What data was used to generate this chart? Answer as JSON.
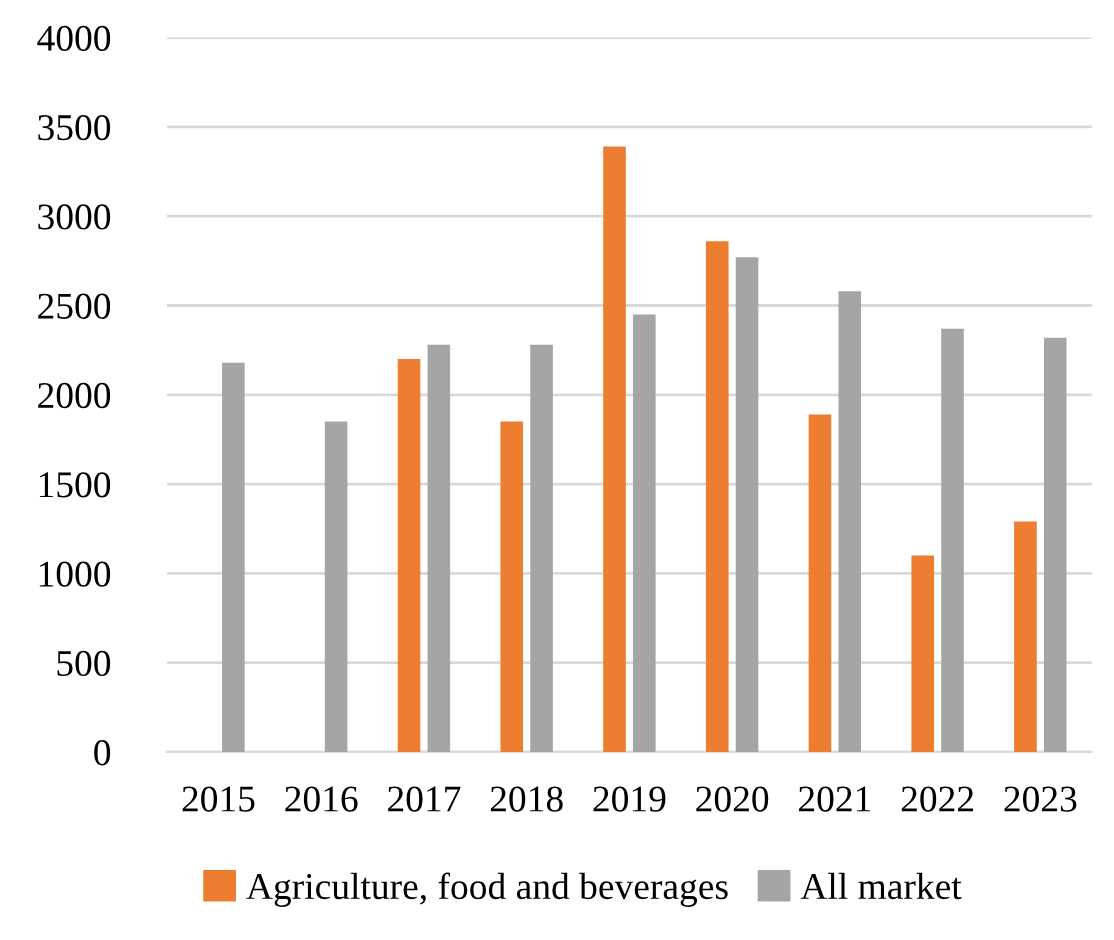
{
  "chart_data": {
    "type": "bar",
    "categories": [
      "2015",
      "2016",
      "2017",
      "2018",
      "2019",
      "2020",
      "2021",
      "2022",
      "2023"
    ],
    "series": [
      {
        "name": "Agriculture, food and beverages",
        "color": "#ed7d31",
        "values": [
          null,
          null,
          2200,
          1850,
          3390,
          2860,
          1890,
          1100,
          1290
        ]
      },
      {
        "name": "All market",
        "color": "#a5a5a5",
        "values": [
          2180,
          1850,
          2280,
          2280,
          2450,
          2770,
          2580,
          2370,
          2320
        ]
      }
    ],
    "ylim": [
      0,
      4000
    ],
    "yticks": [
      0,
      500,
      1000,
      1500,
      2000,
      2500,
      3000,
      3500,
      4000
    ],
    "grid": "y",
    "legend": "bottom"
  }
}
